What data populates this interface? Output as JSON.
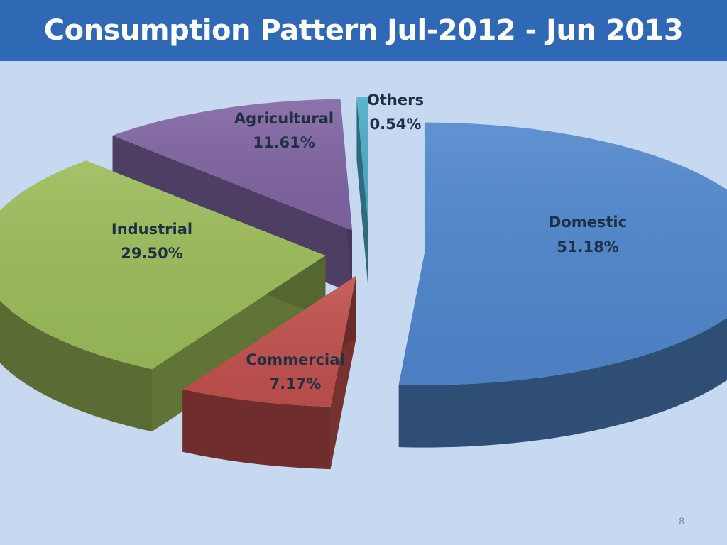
{
  "slide": {
    "title": "Consumption Pattern Jul-2012 - Jun 2013",
    "page_number": "8"
  },
  "chart_data": {
    "type": "pie",
    "title": "Consumption Pattern Jul-2012 - Jun 2013",
    "unit": "%",
    "slices": [
      {
        "name": "Domestic",
        "value": 51.18,
        "value_label": "51.18%",
        "color": "#4f86cc"
      },
      {
        "name": "Commercial",
        "value": 7.17,
        "value_label": "7.17%",
        "color": "#c0504d"
      },
      {
        "name": "Industrial",
        "value": 29.5,
        "value_label": "29.50%",
        "color": "#9bbb59"
      },
      {
        "name": "Agricultural",
        "value": 11.61,
        "value_label": "11.61%",
        "color": "#8064a2"
      },
      {
        "name": "Others",
        "value": 0.54,
        "value_label": "0.54%",
        "color": "#4bacc6"
      }
    ],
    "exploded": true,
    "three_d": true,
    "legend": "none"
  }
}
